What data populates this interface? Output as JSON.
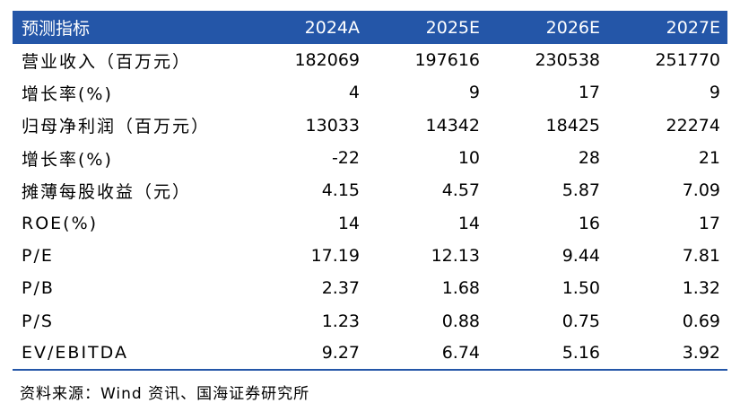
{
  "table": {
    "header": [
      "预测指标",
      "2024A",
      "2025E",
      "2026E",
      "2027E"
    ],
    "rows": [
      {
        "label": "营业收入（百万元）",
        "values": [
          "182069",
          "197616",
          "230538",
          "251770"
        ]
      },
      {
        "label": "增长率(%)",
        "values": [
          "4",
          "9",
          "17",
          "9"
        ]
      },
      {
        "label": "归母净利润（百万元）",
        "values": [
          "13033",
          "14342",
          "18425",
          "22274"
        ]
      },
      {
        "label": "增长率(%)",
        "values": [
          "-22",
          "10",
          "28",
          "21"
        ]
      },
      {
        "label": "摊薄每股收益（元）",
        "values": [
          "4.15",
          "4.57",
          "5.87",
          "7.09"
        ]
      },
      {
        "label": "ROE(%)",
        "values": [
          "14",
          "14",
          "16",
          "17"
        ]
      },
      {
        "label": "P/E",
        "values": [
          "17.19",
          "12.13",
          "9.44",
          "7.81"
        ]
      },
      {
        "label": "P/B",
        "values": [
          "2.37",
          "1.68",
          "1.50",
          "1.32"
        ]
      },
      {
        "label": "P/S",
        "values": [
          "1.23",
          "0.88",
          "0.75",
          "0.69"
        ]
      },
      {
        "label": "EV/EBITDA",
        "values": [
          "9.27",
          "6.74",
          "5.16",
          "3.92"
        ]
      }
    ]
  },
  "source": "资料来源：Wind 资讯、国海证券研究所",
  "colors": {
    "header_bg": "#2456a8",
    "header_text": "#ffffff"
  }
}
